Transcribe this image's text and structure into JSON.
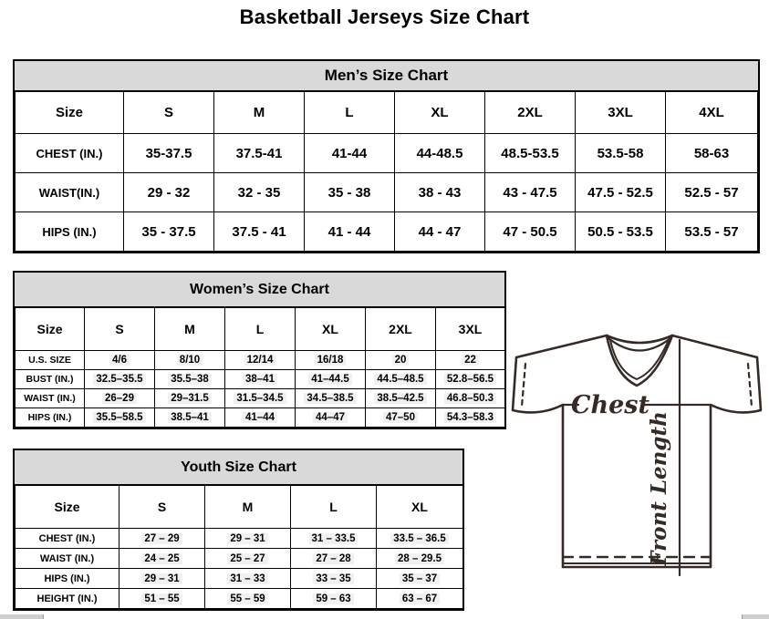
{
  "page_title": "Basketball Jerseys Size Chart",
  "tables": {
    "men": {
      "title": "Men’s Size Chart",
      "headers": [
        "Size",
        "S",
        "M",
        "L",
        "XL",
        "2XL",
        "3XL",
        "4XL"
      ],
      "rows": [
        {
          "label": "CHEST (IN.)",
          "values": [
            "35-37.5",
            "37.5-41",
            "41-44",
            "44-48.5",
            "48.5-53.5",
            "53.5-58",
            "58-63"
          ]
        },
        {
          "label": "WAIST(IN.)",
          "values": [
            "29 - 32",
            "32 - 35",
            "35 - 38",
            "38 - 43",
            "43 - 47.5",
            "47.5 - 52.5",
            "52.5 - 57"
          ]
        },
        {
          "label": "HIPS (IN.)",
          "values": [
            "35 - 37.5",
            "37.5 - 41",
            "41 - 44",
            "44 - 47",
            "47 - 50.5",
            "50.5 - 53.5",
            "53.5 - 57"
          ]
        }
      ]
    },
    "women": {
      "title": "Women’s Size Chart",
      "headers": [
        "Size",
        "S",
        "M",
        "L",
        "XL",
        "2XL",
        "3XL"
      ],
      "rows": [
        {
          "label": "U.S. SIZE",
          "values": [
            "4/6",
            "8/10",
            "12/14",
            "16/18",
            "20",
            "22"
          ]
        },
        {
          "label": "BUST (IN.)",
          "values": [
            "32.5–35.5",
            "35.5–38",
            "38–41",
            "41–44.5",
            "44.5–48.5",
            "52.8–56.5"
          ]
        },
        {
          "label": "WAIST (IN.)",
          "values": [
            "26–29",
            "29–31.5",
            "31.5–34.5",
            "34.5–38.5",
            "38.5–42.5",
            "46.8–50.3"
          ]
        },
        {
          "label": "HIPS (IN.)",
          "values": [
            "35.5–58.5",
            "38.5–41",
            "41–44",
            "44–47",
            "47–50",
            "54.3–58.3"
          ]
        }
      ]
    },
    "youth": {
      "title": "Youth Size Chart",
      "headers": [
        "Size",
        "S",
        "M",
        "L",
        "XL"
      ],
      "rows": [
        {
          "label": "CHEST (IN.)",
          "values": [
            "27 – 29",
            "29 – 31",
            "31 – 33.5",
            "33.5 – 36.5"
          ]
        },
        {
          "label": "WAIST (IN.)",
          "values": [
            "24 – 25",
            "25 – 27",
            "27 – 28",
            "28 – 29.5"
          ]
        },
        {
          "label": "HIPS (IN.)",
          "values": [
            "29 – 31",
            "31 – 33",
            "33 – 35",
            "35 – 37"
          ]
        },
        {
          "label": "HEIGHT (IN.)",
          "values": [
            "51 – 55",
            "55 – 59",
            "59 – 63",
            "63 – 67"
          ]
        }
      ]
    }
  },
  "diagram": {
    "chest_label": "Chest",
    "front_length_label": "Front Length"
  },
  "colors": {
    "table_band_bg": "#d9d9d9",
    "table_border": "#000000",
    "jersey_line": "#352a25",
    "scrollbar_fragment": "#cfcfcf"
  }
}
